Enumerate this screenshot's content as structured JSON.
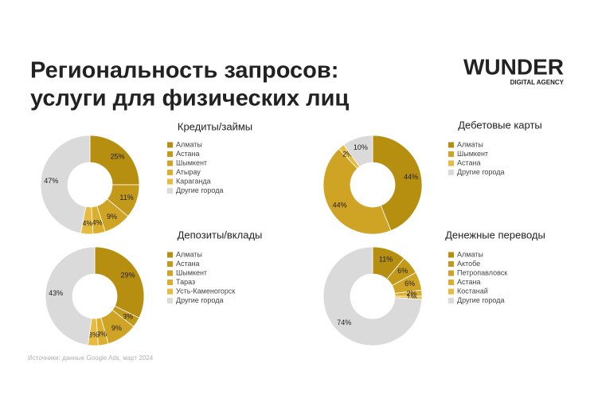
{
  "header": {
    "title_lines": [
      "Региональность запросов:",
      "услуги для физических лиц"
    ],
    "logo": "WUNDER",
    "logo_sub": "DIGITAL AGENCY"
  },
  "source": "Источники: данные Google Ads, март 2024",
  "chart_data": [
    {
      "type": "pie",
      "title": "Кредиты/займы",
      "categories": [
        "Алматы",
        "Астана",
        "Шымкент",
        "Атырау",
        "Караганда",
        "Другие города"
      ],
      "values": [
        25,
        11,
        9,
        4,
        4,
        47
      ],
      "value_labels": [
        "25%",
        "11%",
        "9%",
        "4%",
        "4%",
        "47%"
      ],
      "colors": [
        "#b68e10",
        "#c3991a",
        "#cfa324",
        "#dbae2e",
        "#e6bb3f",
        "#dadada"
      ]
    },
    {
      "type": "pie",
      "title": "Дебетовые карты",
      "categories": [
        "Алматы",
        "Шымкент",
        "Астана",
        "Другие города"
      ],
      "values": [
        44,
        44,
        2,
        10
      ],
      "value_labels": [
        "44%",
        "44%",
        "2%",
        "10%"
      ],
      "colors": [
        "#b68e10",
        "#cfa324",
        "#e6bb3f",
        "#dadada"
      ]
    },
    {
      "type": "pie",
      "title": "Депозиты/вклады",
      "categories": [
        "Алматы",
        "Астана",
        "Шымкент",
        "Тараз",
        "Усть-Каменогорск",
        "Другие города"
      ],
      "values": [
        29,
        3,
        9,
        3,
        3,
        43
      ],
      "value_labels": [
        "29%",
        "3%",
        "9%",
        "3%",
        "3%",
        "43%"
      ],
      "colors": [
        "#b68e10",
        "#c3991a",
        "#cfa324",
        "#dbae2e",
        "#e6bb3f",
        "#dadada"
      ]
    },
    {
      "type": "pie",
      "title": "Денежные переводы",
      "categories": [
        "Алматы",
        "Актобе",
        "Петропавловск",
        "Астана",
        "Костанай",
        "Другие города"
      ],
      "values": [
        11,
        6,
        6,
        2,
        1,
        74
      ],
      "value_labels": [
        "11%",
        "6%",
        "6%",
        "2%",
        "1%",
        "74%"
      ],
      "colors": [
        "#b68e10",
        "#c3991a",
        "#cfa324",
        "#dbae2e",
        "#e6bb3f",
        "#dadada"
      ]
    }
  ]
}
